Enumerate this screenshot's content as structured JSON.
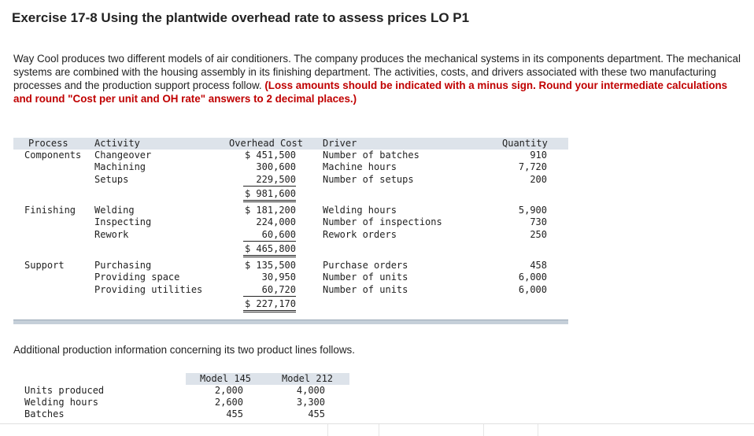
{
  "title": "Exercise 17-8 Using the plantwide overhead rate to assess prices LO P1",
  "intro": {
    "text": "Way Cool produces two different models of air conditioners. The company produces the mechanical systems in its components department. The mechanical systems are combined with the housing assembly in its finishing department. The activities, costs, and drivers associated with these two manufacturing processes and the production support process follow. ",
    "instructions": "(Loss amounts should be indicated with a minus sign. Round your intermediate calculations and round \"Cost per unit and OH rate\" answers to 2 decimal places.)"
  },
  "activity_table": {
    "headers": {
      "process": "Process",
      "activity": "Activity",
      "overhead_cost": "Overhead Cost",
      "driver": "Driver",
      "quantity": "Quantity"
    },
    "groups": [
      {
        "process": "Components",
        "rows": [
          {
            "activity": "Changeover",
            "cost": "$ 451,500",
            "driver": "Number of batches",
            "quantity": "910"
          },
          {
            "activity": "Machining",
            "cost": "300,600",
            "driver": "Machine hours",
            "quantity": "7,720"
          },
          {
            "activity": "Setups",
            "cost": "229,500",
            "driver": "Number of setups",
            "quantity": "200"
          }
        ],
        "total": "$ 981,600"
      },
      {
        "process": "Finishing",
        "rows": [
          {
            "activity": "Welding",
            "cost": "$ 181,200",
            "driver": "Welding hours",
            "quantity": "5,900"
          },
          {
            "activity": "Inspecting",
            "cost": "224,000",
            "driver": "Number of inspections",
            "quantity": "730"
          },
          {
            "activity": "Rework",
            "cost": "60,600",
            "driver": "Rework orders",
            "quantity": "250"
          }
        ],
        "total": "$ 465,800"
      },
      {
        "process": "Support",
        "rows": [
          {
            "activity": "Purchasing",
            "cost": "$ 135,500",
            "driver": "Purchase orders",
            "quantity": "458"
          },
          {
            "activity": "Providing space",
            "cost": "30,950",
            "driver": "Number of units",
            "quantity": "6,000"
          },
          {
            "activity": "Providing utilities",
            "cost": "60,720",
            "driver": "Number of units",
            "quantity": "6,000"
          }
        ],
        "total": "$ 227,170"
      }
    ]
  },
  "additional_text": "Additional production information concerning its two product lines follows.",
  "production_table": {
    "headers": [
      "Model 145",
      "Model 212"
    ],
    "rows": [
      {
        "label": "Units produced",
        "values": [
          "2,000",
          "4,000"
        ]
      },
      {
        "label": "Welding hours",
        "values": [
          "2,600",
          "3,300"
        ]
      },
      {
        "label": "Batches",
        "values": [
          "455",
          "455"
        ]
      }
    ]
  }
}
